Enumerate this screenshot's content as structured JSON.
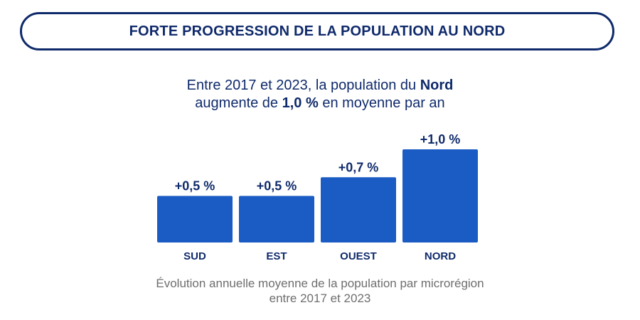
{
  "header": {
    "title": "FORTE PROGRESSION DE LA POPULATION AU NORD"
  },
  "subtitle": {
    "line1_prefix": "Entre 2017 et 2023, la population du ",
    "line1_bold": "Nord",
    "line2_prefix": "augmente de ",
    "line2_bold": "1,0 %",
    "line2_suffix": " en moyenne par an"
  },
  "caption": {
    "line1": "Évolution annuelle moyenne de la population par microrégion",
    "line2": "entre 2017 et 2023"
  },
  "colors": {
    "bar": "#1a5bc4",
    "text_dark": "#0f2a6b",
    "caption": "#6e6e6e"
  },
  "chart_data": {
    "type": "bar",
    "categories": [
      "SUD",
      "EST",
      "OUEST",
      "NORD"
    ],
    "values": [
      0.5,
      0.5,
      0.7,
      1.0
    ],
    "data_labels": [
      "+0,5 %",
      "+0,5 %",
      "+0,7 %",
      "+1,0 %"
    ],
    "title": "",
    "xlabel": "",
    "ylabel": "",
    "ylim": [
      0,
      1.0
    ],
    "grid": false,
    "legend": "none"
  }
}
